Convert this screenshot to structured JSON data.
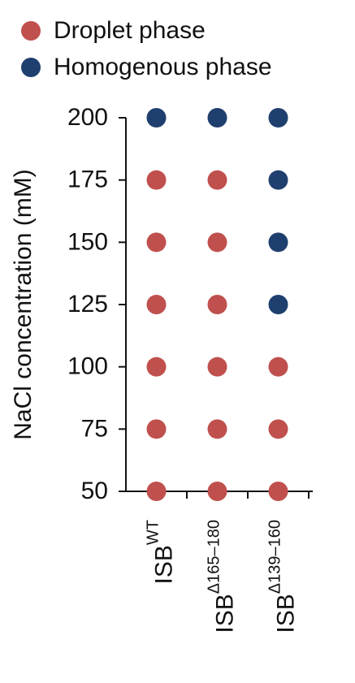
{
  "chart_data": {
    "type": "scatter",
    "y_label": "NaCl concentration (mM)",
    "categories": [
      {
        "base": "ISB",
        "sup": "WT"
      },
      {
        "base": "ISB",
        "sup": "Δ165–180"
      },
      {
        "base": "ISB",
        "sup": "Δ139–160"
      }
    ],
    "series": [
      {
        "name": "Droplet phase",
        "color": "#c0504d",
        "values": [
          [
            50,
            75,
            100,
            125,
            150,
            175
          ],
          [
            50,
            75,
            100,
            125,
            150,
            175
          ],
          [
            50,
            75,
            100
          ]
        ]
      },
      {
        "name": "Homogenous phase",
        "color": "#1f3f6e",
        "values": [
          [
            200
          ],
          [
            200
          ],
          [
            125,
            150,
            175,
            200
          ]
        ]
      }
    ],
    "ylim": [
      50,
      200
    ],
    "yticks": [
      50,
      75,
      100,
      125,
      150,
      175,
      200
    ],
    "legend": "top-left"
  }
}
